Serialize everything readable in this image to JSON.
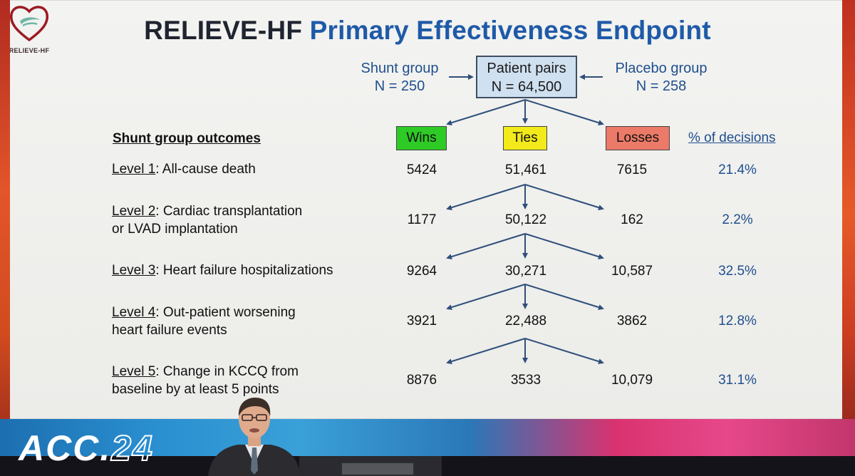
{
  "logo": {
    "text": "RELIEVE-HF",
    "icon": "heart-logo-icon",
    "color": "#9b1c24"
  },
  "title": {
    "part1": "RELIEVE-HF",
    "part2": "Primary Effectiveness Endpoint"
  },
  "groups": {
    "shunt": {
      "line1": "Shunt group",
      "line2": "N = 250"
    },
    "pairs": {
      "line1": "Patient pairs",
      "line2": "N = 64,500"
    },
    "placebo": {
      "line1": "Placebo group",
      "line2": "N = 258"
    }
  },
  "table": {
    "outcomes_header": "Shunt group outcomes",
    "wins_header": "Wins",
    "ties_header": "Ties",
    "losses_header": "Losses",
    "pct_header": "% of decisions",
    "rows": [
      {
        "level": "Level 1",
        "desc1": ": All-cause death",
        "desc2": "",
        "wins": "5424",
        "ties": "51,461",
        "losses": "7615",
        "pct": "21.4%"
      },
      {
        "level": "Level 2",
        "desc1": ": Cardiac transplantation",
        "desc2": "or LVAD implantation",
        "wins": "1177",
        "ties": "50,122",
        "losses": "162",
        "pct": "2.2%"
      },
      {
        "level": "Level 3",
        "desc1": ": Heart failure hospitalizations",
        "desc2": "",
        "wins": "9264",
        "ties": "30,271",
        "losses": "10,587",
        "pct": "32.5%"
      },
      {
        "level": "Level 4",
        "desc1": ": Out-patient worsening",
        "desc2": "heart failure events",
        "wins": "3921",
        "ties": "22,488",
        "losses": "3862",
        "pct": "12.8%"
      },
      {
        "level": "Level 5",
        "desc1": ": Change in KCCQ from",
        "desc2": "baseline by at least 5 points",
        "wins": "8876",
        "ties": "3533",
        "losses": "10,079",
        "pct": "31.1%"
      }
    ]
  },
  "colors": {
    "wins": "#2ecb26",
    "ties": "#f2ea1a",
    "losses": "#ec7a68",
    "accent_blue": "#1f5aa8"
  },
  "banner": {
    "acc": "ACC.",
    "year": "24"
  }
}
